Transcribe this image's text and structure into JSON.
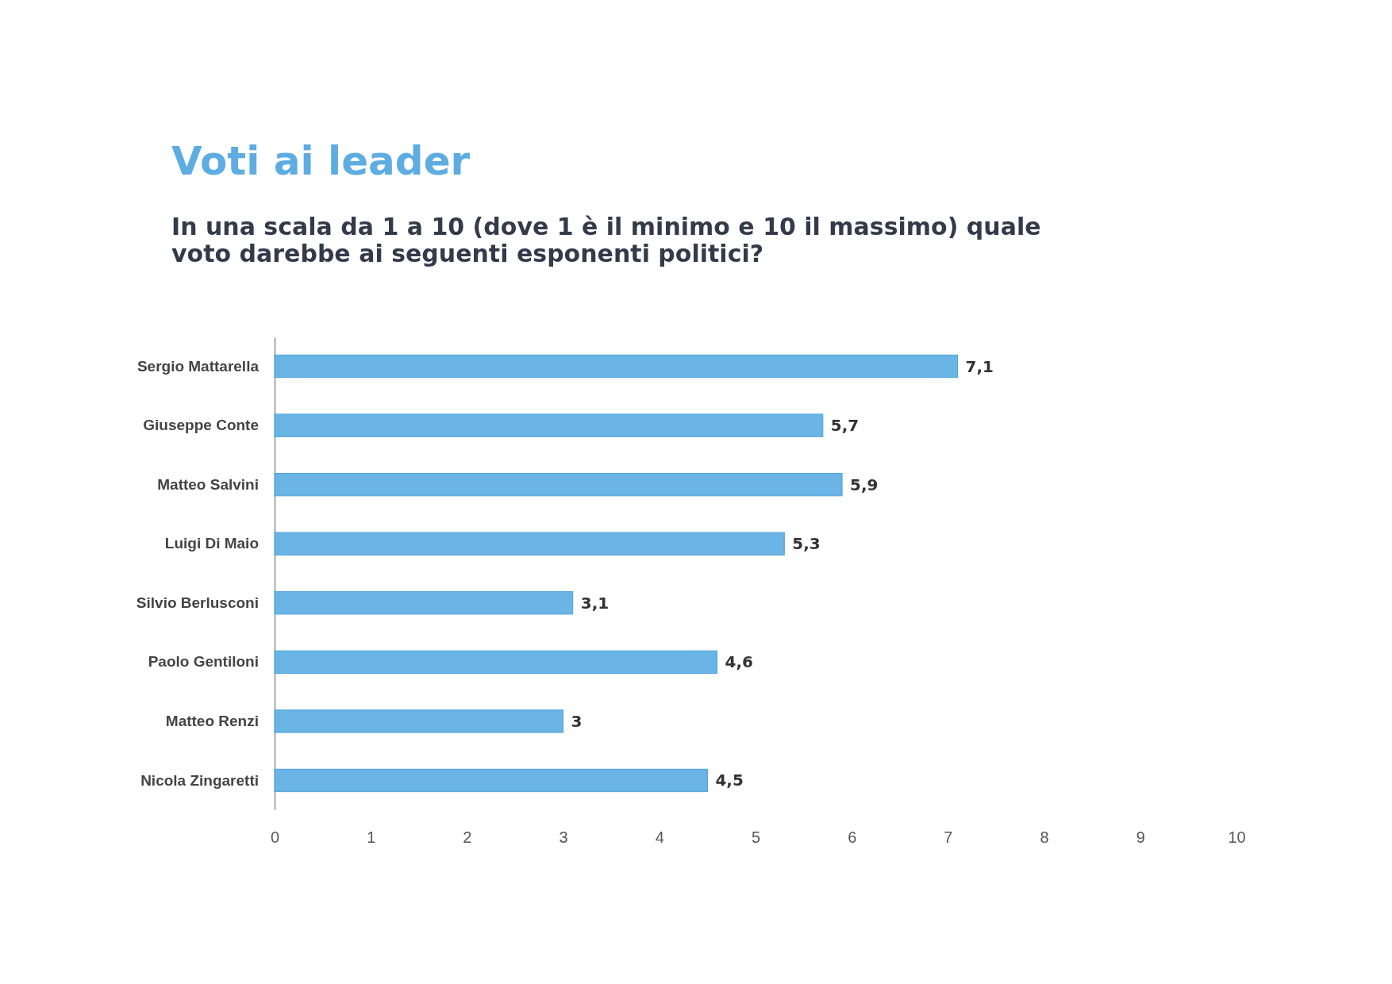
{
  "chart_data": {
    "type": "bar",
    "orientation": "horizontal",
    "title": "Voti ai leader",
    "subtitle": "In una scala da 1 a 10 (dove 1 è il minimo e 10 il massimo) quale voto darebbe ai seguenti esponenti politici?",
    "categories": [
      "Sergio Mattarella",
      "Giuseppe Conte",
      "Matteo Salvini",
      "Luigi Di Maio",
      "Silvio Berlusconi",
      "Paolo Gentiloni",
      "Matteo Renzi",
      "Nicola Zingaretti"
    ],
    "values": [
      7.1,
      5.7,
      5.9,
      5.3,
      3.1,
      4.6,
      3,
      4.5
    ],
    "value_labels": [
      "7,1",
      "5,7",
      "5,9",
      "5,3",
      "3,1",
      "4,6",
      "3",
      "4,5"
    ],
    "color": "#6ab4e6",
    "xlim": [
      0,
      10
    ],
    "xticks": [
      0,
      1,
      2,
      3,
      4,
      5,
      6,
      7,
      8,
      9,
      10
    ],
    "grid": false
  }
}
